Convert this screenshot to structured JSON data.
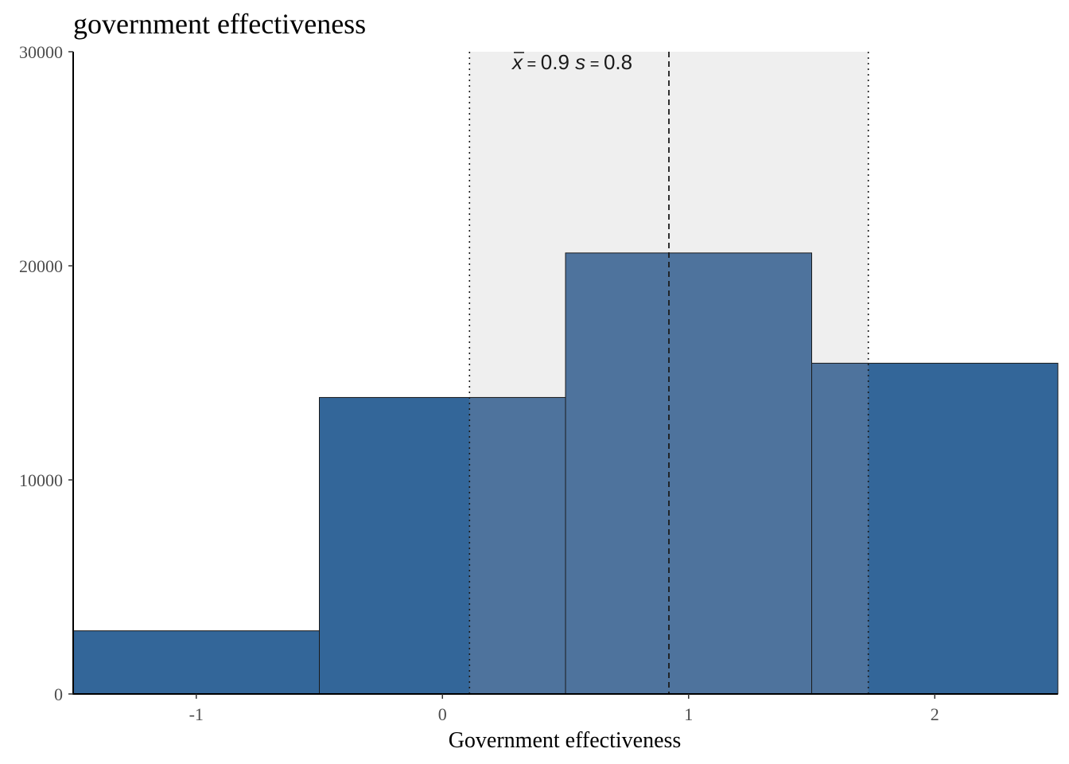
{
  "chart_data": {
    "type": "bar",
    "subtype": "histogram",
    "title": "government effectiveness",
    "xlabel": "Government effectiveness",
    "ylabel": "",
    "xlim": [
      -1.5,
      2.5
    ],
    "ylim": [
      0,
      30000
    ],
    "x_ticks": [
      -1,
      0,
      1,
      2
    ],
    "x_tick_labels": [
      "-1",
      "0",
      "1",
      "2"
    ],
    "y_ticks": [
      0,
      10000,
      20000,
      30000
    ],
    "y_tick_labels": [
      "0",
      "10000",
      "20000",
      "30000"
    ],
    "bins": [
      {
        "x_start": -1.5,
        "x_end": -0.5,
        "count": 2950
      },
      {
        "x_start": -0.5,
        "x_end": 0.5,
        "count": 13850
      },
      {
        "x_start": 0.5,
        "x_end": 1.5,
        "count": 20600
      },
      {
        "x_start": 1.5,
        "x_end": 2.5,
        "count": 15450
      }
    ],
    "mean": 0.92,
    "sd": 0.8,
    "sd_band": [
      0.11,
      1.73
    ],
    "annotation": {
      "mean_symbol": "x",
      "equals": "=",
      "mean_label": "0.9",
      "sd_symbol": "s",
      "sd_label": "0.8"
    },
    "colors": {
      "bar": "#336699",
      "bar_in_band": "#4e739d",
      "band": "#efefef",
      "bar_outline": "#1a1a1a",
      "reference_lines": "#1a1a1a"
    },
    "grid": false,
    "legend": "none"
  }
}
